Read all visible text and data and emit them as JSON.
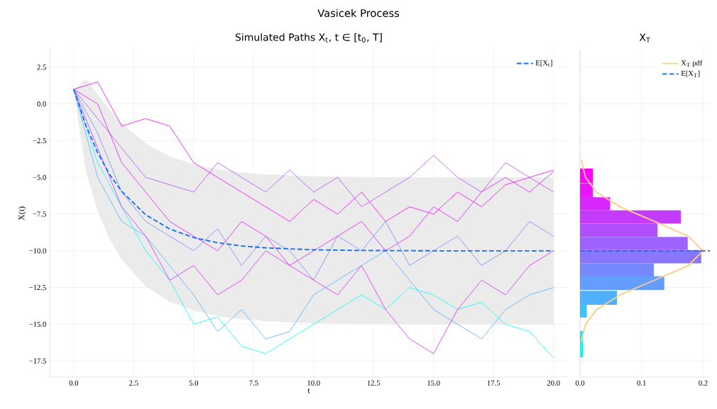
{
  "chart_data": [
    {
      "type": "line",
      "title": "Vasicek Process",
      "subtitle": "Simulated Paths X$_{t}$, t ∈ [t$_{0}$, T]",
      "xlabel": "t",
      "ylabel": "X(t)",
      "xlim": [
        -1,
        20.6
      ],
      "ylim": [
        -18.6,
        3.7
      ],
      "xticks": [
        {
          "value": 0,
          "label": "0.0"
        },
        {
          "value": 2.5,
          "label": "2.5"
        },
        {
          "value": 5,
          "label": "5.0"
        },
        {
          "value": 7.5,
          "label": "7.5"
        },
        {
          "value": 10,
          "label": "10.0"
        },
        {
          "value": 12.5,
          "label": "12.5"
        },
        {
          "value": 15,
          "label": "15.0"
        },
        {
          "value": 17.5,
          "label": "17.5"
        },
        {
          "value": 20,
          "label": "20.0"
        }
      ],
      "yticks": [
        {
          "value": -17.5,
          "label": "−17.5"
        },
        {
          "value": -15,
          "label": "−15.0"
        },
        {
          "value": -12.5,
          "label": "−12.5"
        },
        {
          "value": -10,
          "label": "−10.0"
        },
        {
          "value": -7.5,
          "label": "−7.5"
        },
        {
          "value": -5,
          "label": "−5.0"
        },
        {
          "value": -2.5,
          "label": "−2.5"
        },
        {
          "value": 0,
          "label": "0.0"
        },
        {
          "value": 2.5,
          "label": "2.5"
        }
      ],
      "grid": true,
      "legend": "top right",
      "x": [
        0,
        1,
        2,
        3,
        4,
        5,
        6,
        7,
        8,
        9,
        10,
        11,
        12,
        13,
        14,
        15,
        16,
        17,
        18,
        19,
        20
      ],
      "series": [
        {
          "color": "#00ffff",
          "values": [
            1,
            -4,
            -7,
            -10,
            -12,
            -15,
            -14.5,
            -16.5,
            -17,
            -16,
            -15,
            -14,
            -13,
            -14,
            -12.5,
            -13,
            -14,
            -13.5,
            -15,
            -15.5,
            -17.3
          ]
        },
        {
          "color": "#4fb0ff",
          "values": [
            1,
            -5,
            -8,
            -9,
            -11,
            -13,
            -15.5,
            -14,
            -16,
            -15.5,
            -13,
            -12,
            -11,
            -10,
            -12,
            -14,
            -15,
            -16,
            -14,
            -13,
            -12.5
          ]
        },
        {
          "color": "#7689ff",
          "values": [
            1,
            -2,
            -6,
            -8,
            -9,
            -10,
            -8.5,
            -11,
            -9,
            -10,
            -12,
            -9,
            -10,
            -8,
            -11,
            -10,
            -9,
            -11,
            -10,
            -8,
            -9
          ]
        },
        {
          "color": "#b14eff",
          "values": [
            1,
            -1,
            -3,
            -5,
            -5.5,
            -6,
            -4,
            -5,
            -6,
            -4.5,
            -6,
            -5,
            -7,
            -6,
            -5,
            -3.5,
            -5,
            -6,
            -4,
            -5,
            -6
          ]
        },
        {
          "color": "#d827ff",
          "values": [
            1,
            -3,
            -7,
            -9,
            -12,
            -11,
            -13,
            -12,
            -10,
            -11,
            -12,
            -13,
            -11,
            -14,
            -16,
            -17,
            -14,
            -12,
            -13,
            -11,
            -10
          ]
        },
        {
          "color": "#ff00ff",
          "values": [
            1,
            1.5,
            -1.5,
            -1,
            -1.5,
            -4,
            -5,
            -6,
            -7,
            -8,
            -6.5,
            -7.5,
            -6,
            -8,
            -7,
            -7.5,
            -6,
            -7,
            -5.5,
            -5,
            -4.5
          ]
        },
        {
          "color": "#eb14ff",
          "values": [
            1,
            0,
            -4,
            -6,
            -8,
            -9,
            -10,
            -8,
            -9,
            -11,
            -10,
            -9,
            -8,
            -10,
            -9,
            -7,
            -8,
            -6,
            -5,
            -6,
            -4.6
          ]
        },
        {
          "name": "E[X$_{t}$]",
          "color": "#0f6fff",
          "line_style": "dashed",
          "x": [
            0,
            0.5,
            1,
            1.5,
            2,
            3,
            4,
            5,
            6,
            7,
            8,
            10,
            12,
            15,
            20
          ],
          "values": [
            1,
            -1.43,
            -3.32,
            -4.81,
            -5.95,
            -7.55,
            -8.51,
            -9.1,
            -9.45,
            -9.67,
            -9.8,
            -9.93,
            -9.98,
            -10,
            -10
          ],
          "upper": [
            1,
            1.71,
            0.65,
            -0.4,
            -1.3,
            -2.68,
            -3.56,
            -4.12,
            -4.45,
            -4.67,
            -4.8,
            -4.93,
            -4.98,
            -5,
            -5
          ],
          "lower": [
            1,
            -4.57,
            -7.29,
            -9.22,
            -10.6,
            -12.42,
            -13.46,
            -14.08,
            -14.45,
            -14.67,
            -14.8,
            -14.93,
            -14.98,
            -15,
            -15
          ]
        }
      ]
    },
    {
      "type": "bar",
      "title": "X$_{T}$",
      "orientation": "horizontal",
      "grid": true,
      "legend": "top right",
      "tick_labels": "x",
      "xlim": [
        0,
        0.211
      ],
      "ylim": [
        -18.6,
        3.7
      ],
      "xticks": [
        {
          "value": 0,
          "label": "0.0"
        },
        {
          "value": 0.1,
          "label": "0.1"
        },
        {
          "value": 0.2,
          "label": "0.2"
        }
      ],
      "yticks": [
        {
          "value": -17.5,
          "label": null
        },
        {
          "value": -15,
          "label": null
        },
        {
          "value": -12.5,
          "label": null
        },
        {
          "value": -10,
          "label": null
        },
        {
          "value": -7.5,
          "label": null
        },
        {
          "value": -5,
          "label": null
        },
        {
          "value": -2.5,
          "label": null
        },
        {
          "value": 0,
          "label": null
        },
        {
          "value": 2.5,
          "label": null
        }
      ],
      "x": [
        -16.8,
        -15.9,
        -15.0,
        -14.1,
        -13.2,
        -12.2,
        -11.3,
        -10.4,
        -9.5,
        -8.6,
        -7.7,
        -6.8,
        -5.9,
        -4.9
      ],
      "values": [
        0.005,
        0.005,
        0,
        0.011,
        0.06,
        0.137,
        0.12,
        0.197,
        0.175,
        0.126,
        0.164,
        0.049,
        0.021,
        0.021
      ],
      "colors": [
        "#00ffff",
        "#14ebff",
        "#27d8ff",
        "#3bc4ff",
        "#4fb0ff",
        "#629dff",
        "#7689ff",
        "#8a75ff",
        "#9d62ff",
        "#b14eff",
        "#c43bff",
        "#d827ff",
        "#eb14ff",
        "#ff00ff"
      ],
      "series": [
        {
          "type": "line",
          "name": "X$_{T}$ pdf",
          "color": "#ffcc88",
          "x": [
            -3.8,
            -5,
            -6,
            -7,
            -8,
            -9,
            -10,
            -11,
            -12,
            -13,
            -14,
            -15,
            -16.2
          ],
          "values": [
            0.002,
            0.009,
            0.027,
            0.065,
            0.121,
            0.176,
            0.2,
            0.176,
            0.121,
            0.065,
            0.027,
            0.009,
            0.002
          ]
        }
      ],
      "ref_lines": [
        {
          "axis": "y",
          "value": -10,
          "label": "E[X$_{T}$]",
          "color": "#0f6fff",
          "line_style": "dashed"
        }
      ]
    }
  ]
}
